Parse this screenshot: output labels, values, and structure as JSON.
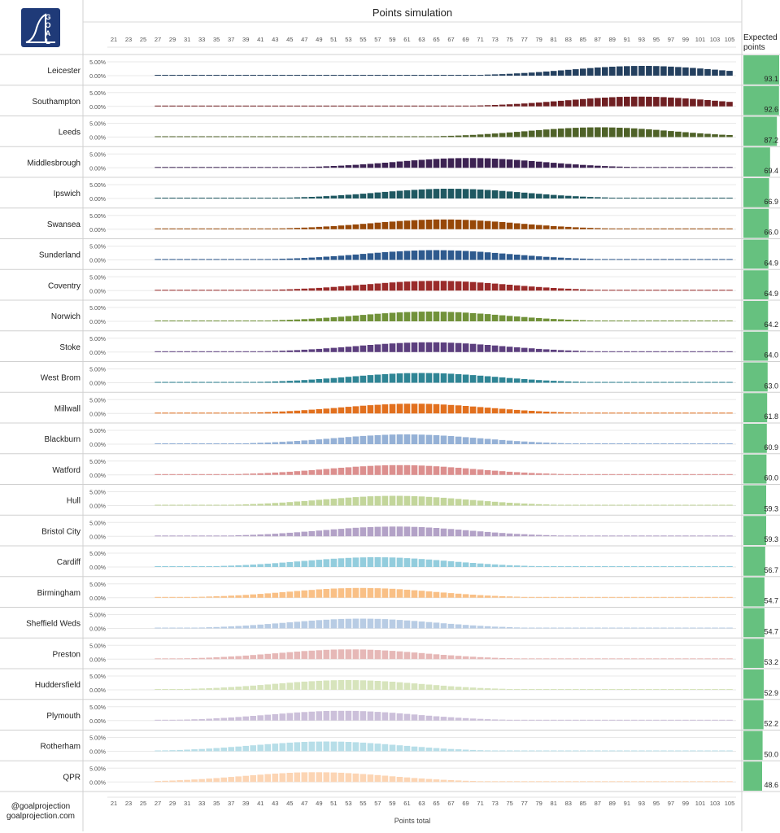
{
  "logo": {
    "text": "GOAL",
    "color": "#1f3a78"
  },
  "chart_data": {
    "type": "bar",
    "title": "Points simulation",
    "xlabel": "Points total",
    "y_tick_labels": [
      "5.00%",
      "0.00%"
    ],
    "x_tick_labels": [
      "21",
      "23",
      "25",
      "27",
      "29",
      "31",
      "33",
      "35",
      "37",
      "39",
      "41",
      "43",
      "45",
      "47",
      "49",
      "51",
      "53",
      "55",
      "57",
      "59",
      "61",
      "63",
      "65",
      "67",
      "69",
      "71",
      "73",
      "75",
      "77",
      "79",
      "81",
      "83",
      "85",
      "87",
      "89",
      "91",
      "93",
      "95",
      "97",
      "99",
      "101",
      "103",
      "105"
    ],
    "expected_points_label": "Expected points",
    "bar_color_expected": "#66c17f",
    "expected_scale_max": 93.1,
    "teams": [
      {
        "name": "Leicester",
        "xp": 93.1,
        "sd": 10,
        "color": "#24405f"
      },
      {
        "name": "Southampton",
        "xp": 92.6,
        "sd": 10,
        "color": "#6f1f22"
      },
      {
        "name": "Leeds",
        "xp": 87.2,
        "sd": 10,
        "color": "#4f6228"
      },
      {
        "name": "Middlesbrough",
        "xp": 69.4,
        "sd": 10,
        "color": "#3c2252"
      },
      {
        "name": "Ipswich",
        "xp": 66.9,
        "sd": 10,
        "color": "#1f5861"
      },
      {
        "name": "Swansea",
        "xp": 66.0,
        "sd": 10,
        "color": "#974808"
      },
      {
        "name": "Sunderland",
        "xp": 64.9,
        "sd": 10,
        "color": "#2e5a8e"
      },
      {
        "name": "Coventry",
        "xp": 64.9,
        "sd": 10,
        "color": "#9a2b2a"
      },
      {
        "name": "Norwich",
        "xp": 64.2,
        "sd": 10,
        "color": "#71923a"
      },
      {
        "name": "Stoke",
        "xp": 64.0,
        "sd": 10,
        "color": "#5c3f7e"
      },
      {
        "name": "West Brom",
        "xp": 63.0,
        "sd": 10,
        "color": "#2f8595"
      },
      {
        "name": "Millwall",
        "xp": 61.8,
        "sd": 10,
        "color": "#e2701e"
      },
      {
        "name": "Blackburn",
        "xp": 60.9,
        "sd": 10,
        "color": "#95b1d6"
      },
      {
        "name": "Watford",
        "xp": 60.0,
        "sd": 10,
        "color": "#dc8f8e"
      },
      {
        "name": "Hull",
        "xp": 59.3,
        "sd": 10,
        "color": "#c3d69b"
      },
      {
        "name": "Bristol City",
        "xp": 59.3,
        "sd": 10,
        "color": "#b3a2c7"
      },
      {
        "name": "Cardiff",
        "xp": 56.7,
        "sd": 10,
        "color": "#93cddd"
      },
      {
        "name": "Birmingham",
        "xp": 54.7,
        "sd": 10,
        "color": "#f9c086"
      },
      {
        "name": "Sheffield Weds",
        "xp": 54.7,
        "sd": 10,
        "color": "#b8cce4"
      },
      {
        "name": "Preston",
        "xp": 53.2,
        "sd": 10,
        "color": "#e6b8b7"
      },
      {
        "name": "Huddersfield",
        "xp": 52.9,
        "sd": 10,
        "color": "#d7e4bc"
      },
      {
        "name": "Plymouth",
        "xp": 52.2,
        "sd": 10,
        "color": "#ccc0da"
      },
      {
        "name": "Rotherham",
        "xp": 50.0,
        "sd": 10,
        "color": "#b7dee8"
      },
      {
        "name": "QPR",
        "xp": 48.6,
        "sd": 10,
        "color": "#fcd5b4"
      }
    ]
  },
  "footer": {
    "handle": "@goalprojection",
    "site": "goalprojection.com"
  }
}
